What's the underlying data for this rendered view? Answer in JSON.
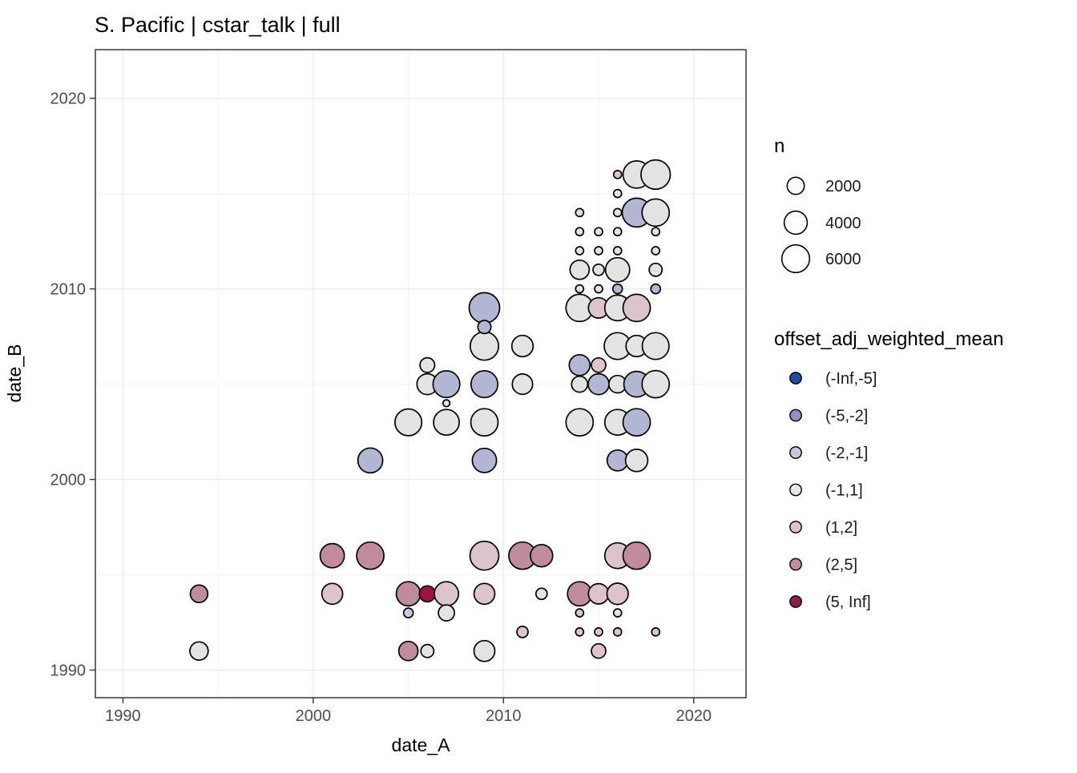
{
  "title": "S. Pacific | cstar_talk | full",
  "legend": {
    "size_title": "n",
    "size_entries": [
      {
        "label": "2000",
        "value": 2000
      },
      {
        "label": "4000",
        "value": 4000
      },
      {
        "label": "6000",
        "value": 6000
      }
    ],
    "color_title": "offset_adj_weighted_mean",
    "color_entries": [
      {
        "label": "(-Inf,-5]",
        "bin": "neg_inf_neg5"
      },
      {
        "label": "(-5,-2]",
        "bin": "neg5_neg2"
      },
      {
        "label": "(-2,-1]",
        "bin": "neg2_neg1"
      },
      {
        "label": "(-1,1]",
        "bin": "neg1_1"
      },
      {
        "label": "(1,2]",
        "bin": "1_2"
      },
      {
        "label": "(2,5]",
        "bin": "2_5"
      },
      {
        "label": "(5, Inf]",
        "bin": "5_inf"
      }
    ],
    "bins": {
      "neg_inf_neg5": {
        "legend_color": "#1f4e9e",
        "plot_color": "#5577b8"
      },
      "neg5_neg2": {
        "legend_color": "#8e93c3",
        "plot_color": "#b3b7d3"
      },
      "neg2_neg1": {
        "legend_color": "#c5c7db",
        "plot_color": "#c7cadf"
      },
      "neg1_1": {
        "legend_color": "#e7e7e7",
        "plot_color": "#e3e3e3"
      },
      "1_2": {
        "legend_color": "#dcc2ca",
        "plot_color": "#ddc4cc"
      },
      "2_5": {
        "legend_color": "#c08d9c",
        "plot_color": "#c08b9b"
      },
      "5_inf": {
        "legend_color": "#8e1c4d",
        "plot_color": "#9b1347"
      }
    }
  },
  "chart_data": {
    "type": "scatter",
    "title": "S. Pacific | cstar_talk | full",
    "xlabel": "date_A",
    "ylabel": "date_B",
    "xlim": [
      1988.55,
      2022.75
    ],
    "ylim": [
      1988.55,
      2022.55
    ],
    "x_ticks": [
      1990,
      2000,
      2010,
      2020
    ],
    "y_ticks": [
      1990,
      2000,
      2010,
      2020
    ],
    "x_minor": [
      1995,
      2005,
      2015
    ],
    "y_minor": [
      1995,
      2005,
      2015
    ],
    "grid": true,
    "legend_position": "right",
    "size_variable": "n",
    "color_variable": "offset_adj_weighted_mean",
    "points": [
      {
        "x": 1994,
        "y": 1991,
        "n": 2300,
        "bin": "neg1_1"
      },
      {
        "x": 1994,
        "y": 1994,
        "n": 2100,
        "bin": "2_5"
      },
      {
        "x": 2001,
        "y": 1994,
        "n": 3150,
        "bin": "1_2"
      },
      {
        "x": 2001,
        "y": 1996,
        "n": 4400,
        "bin": "2_5"
      },
      {
        "x": 2003,
        "y": 1996,
        "n": 5800,
        "bin": "2_5"
      },
      {
        "x": 2003,
        "y": 2001,
        "n": 4700,
        "bin": "neg5_neg2"
      },
      {
        "x": 2005,
        "y": 1991,
        "n": 2600,
        "bin": "2_5"
      },
      {
        "x": 2005,
        "y": 1993,
        "n": 450,
        "bin": "neg2_neg1"
      },
      {
        "x": 2005,
        "y": 1994,
        "n": 4400,
        "bin": "2_5"
      },
      {
        "x": 2005,
        "y": 2003,
        "n": 5550,
        "bin": "neg1_1"
      },
      {
        "x": 2006,
        "y": 1991,
        "n": 1000,
        "bin": "neg1_1"
      },
      {
        "x": 2006,
        "y": 1994,
        "n": 1700,
        "bin": "5_inf"
      },
      {
        "x": 2006,
        "y": 2005,
        "n": 3150,
        "bin": "neg1_1"
      },
      {
        "x": 2006,
        "y": 2006,
        "n": 1400,
        "bin": "neg1_1"
      },
      {
        "x": 2007,
        "y": 1993,
        "n": 1700,
        "bin": "neg1_1"
      },
      {
        "x": 2007,
        "y": 1994,
        "n": 4400,
        "bin": "1_2"
      },
      {
        "x": 2007,
        "y": 2003,
        "n": 5050,
        "bin": "neg1_1"
      },
      {
        "x": 2007,
        "y": 2004,
        "n": 170,
        "bin": "neg1_1"
      },
      {
        "x": 2007,
        "y": 2005,
        "n": 5550,
        "bin": "neg5_neg2"
      },
      {
        "x": 2009,
        "y": 1991,
        "n": 3150,
        "bin": "neg1_1"
      },
      {
        "x": 2009,
        "y": 1994,
        "n": 3150,
        "bin": "1_2"
      },
      {
        "x": 2009,
        "y": 1996,
        "n": 6550,
        "bin": "1_2"
      },
      {
        "x": 2009,
        "y": 2001,
        "n": 4400,
        "bin": "neg5_neg2"
      },
      {
        "x": 2009,
        "y": 2003,
        "n": 5800,
        "bin": "neg1_1"
      },
      {
        "x": 2009,
        "y": 2005,
        "n": 5550,
        "bin": "neg5_neg2"
      },
      {
        "x": 2009,
        "y": 2007,
        "n": 6300,
        "bin": "neg1_1"
      },
      {
        "x": 2009,
        "y": 2008,
        "n": 1050,
        "bin": "neg5_neg2"
      },
      {
        "x": 2009,
        "y": 2009,
        "n": 7400,
        "bin": "neg5_neg2"
      },
      {
        "x": 2011,
        "y": 1992,
        "n": 700,
        "bin": "1_2"
      },
      {
        "x": 2011,
        "y": 1996,
        "n": 5800,
        "bin": "2_5"
      },
      {
        "x": 2011,
        "y": 2005,
        "n": 3000,
        "bin": "neg1_1"
      },
      {
        "x": 2011,
        "y": 2007,
        "n": 3300,
        "bin": "neg1_1"
      },
      {
        "x": 2012,
        "y": 1994,
        "n": 700,
        "bin": "neg1_1"
      },
      {
        "x": 2012,
        "y": 1996,
        "n": 3700,
        "bin": "2_5"
      },
      {
        "x": 2014,
        "y": 1992,
        "n": 270,
        "bin": "1_2"
      },
      {
        "x": 2014,
        "y": 1993,
        "n": 270,
        "bin": "1_2"
      },
      {
        "x": 2014,
        "y": 1994,
        "n": 4400,
        "bin": "2_5"
      },
      {
        "x": 2014,
        "y": 2003,
        "n": 5800,
        "bin": "neg1_1"
      },
      {
        "x": 2014,
        "y": 2005,
        "n": 1700,
        "bin": "neg1_1"
      },
      {
        "x": 2014,
        "y": 2006,
        "n": 3150,
        "bin": "neg5_neg2"
      },
      {
        "x": 2014,
        "y": 2009,
        "n": 5800,
        "bin": "neg1_1"
      },
      {
        "x": 2014,
        "y": 2010,
        "n": 270,
        "bin": "neg1_1"
      },
      {
        "x": 2014,
        "y": 2011,
        "n": 2600,
        "bin": "neg1_1"
      },
      {
        "x": 2014,
        "y": 2012,
        "n": 270,
        "bin": "neg1_1"
      },
      {
        "x": 2014,
        "y": 2013,
        "n": 270,
        "bin": "neg1_1"
      },
      {
        "x": 2014,
        "y": 2014,
        "n": 270,
        "bin": "neg1_1"
      },
      {
        "x": 2015,
        "y": 1991,
        "n": 1300,
        "bin": "1_2"
      },
      {
        "x": 2015,
        "y": 1992,
        "n": 270,
        "bin": "1_2"
      },
      {
        "x": 2015,
        "y": 1994,
        "n": 3000,
        "bin": "1_2"
      },
      {
        "x": 2015,
        "y": 2005,
        "n": 3150,
        "bin": "neg5_neg2"
      },
      {
        "x": 2015,
        "y": 2006,
        "n": 1300,
        "bin": "1_2"
      },
      {
        "x": 2015,
        "y": 2009,
        "n": 3000,
        "bin": "1_2"
      },
      {
        "x": 2015,
        "y": 2010,
        "n": 270,
        "bin": "neg1_1"
      },
      {
        "x": 2015,
        "y": 2011,
        "n": 700,
        "bin": "neg1_1"
      },
      {
        "x": 2015,
        "y": 2012,
        "n": 270,
        "bin": "neg1_1"
      },
      {
        "x": 2015,
        "y": 2013,
        "n": 270,
        "bin": "neg1_1"
      },
      {
        "x": 2016,
        "y": 1992,
        "n": 270,
        "bin": "1_2"
      },
      {
        "x": 2016,
        "y": 1993,
        "n": 270,
        "bin": "neg1_1"
      },
      {
        "x": 2016,
        "y": 1994,
        "n": 3300,
        "bin": "1_2"
      },
      {
        "x": 2016,
        "y": 1996,
        "n": 5050,
        "bin": "1_2"
      },
      {
        "x": 2016,
        "y": 2001,
        "n": 3150,
        "bin": "neg5_neg2"
      },
      {
        "x": 2016,
        "y": 2003,
        "n": 5050,
        "bin": "neg1_1"
      },
      {
        "x": 2016,
        "y": 2005,
        "n": 2100,
        "bin": "neg1_1"
      },
      {
        "x": 2016,
        "y": 2007,
        "n": 5550,
        "bin": "neg1_1"
      },
      {
        "x": 2016,
        "y": 2009,
        "n": 5050,
        "bin": "neg1_1"
      },
      {
        "x": 2016,
        "y": 2010,
        "n": 450,
        "bin": "neg5_neg2"
      },
      {
        "x": 2016,
        "y": 2011,
        "n": 4400,
        "bin": "neg1_1"
      },
      {
        "x": 2016,
        "y": 2012,
        "n": 270,
        "bin": "neg1_1"
      },
      {
        "x": 2016,
        "y": 2013,
        "n": 270,
        "bin": "neg1_1"
      },
      {
        "x": 2016,
        "y": 2014,
        "n": 270,
        "bin": "neg1_1"
      },
      {
        "x": 2016,
        "y": 2015,
        "n": 270,
        "bin": "neg1_1"
      },
      {
        "x": 2016,
        "y": 2016,
        "n": 270,
        "bin": "1_2"
      },
      {
        "x": 2017,
        "y": 1996,
        "n": 5800,
        "bin": "2_5"
      },
      {
        "x": 2017,
        "y": 2001,
        "n": 3700,
        "bin": "neg1_1"
      },
      {
        "x": 2017,
        "y": 2003,
        "n": 5800,
        "bin": "neg5_neg2"
      },
      {
        "x": 2017,
        "y": 2005,
        "n": 5050,
        "bin": "neg5_neg2"
      },
      {
        "x": 2017,
        "y": 2007,
        "n": 3300,
        "bin": "neg1_1"
      },
      {
        "x": 2017,
        "y": 2009,
        "n": 5800,
        "bin": "1_2"
      },
      {
        "x": 2017,
        "y": 2014,
        "n": 6550,
        "bin": "neg5_neg2"
      },
      {
        "x": 2017,
        "y": 2016,
        "n": 5800,
        "bin": "neg1_1"
      },
      {
        "x": 2018,
        "y": 1992,
        "n": 270,
        "bin": "1_2"
      },
      {
        "x": 2018,
        "y": 2005,
        "n": 5800,
        "bin": "neg1_1"
      },
      {
        "x": 2018,
        "y": 2007,
        "n": 5550,
        "bin": "neg1_1"
      },
      {
        "x": 2018,
        "y": 2010,
        "n": 450,
        "bin": "neg5_neg2"
      },
      {
        "x": 2018,
        "y": 2011,
        "n": 1000,
        "bin": "neg1_1"
      },
      {
        "x": 2018,
        "y": 2012,
        "n": 270,
        "bin": "neg1_1"
      },
      {
        "x": 2018,
        "y": 2013,
        "n": 270,
        "bin": "neg1_1"
      },
      {
        "x": 2018,
        "y": 2014,
        "n": 5800,
        "bin": "neg1_1"
      },
      {
        "x": 2018,
        "y": 2016,
        "n": 6800,
        "bin": "neg1_1"
      }
    ]
  }
}
